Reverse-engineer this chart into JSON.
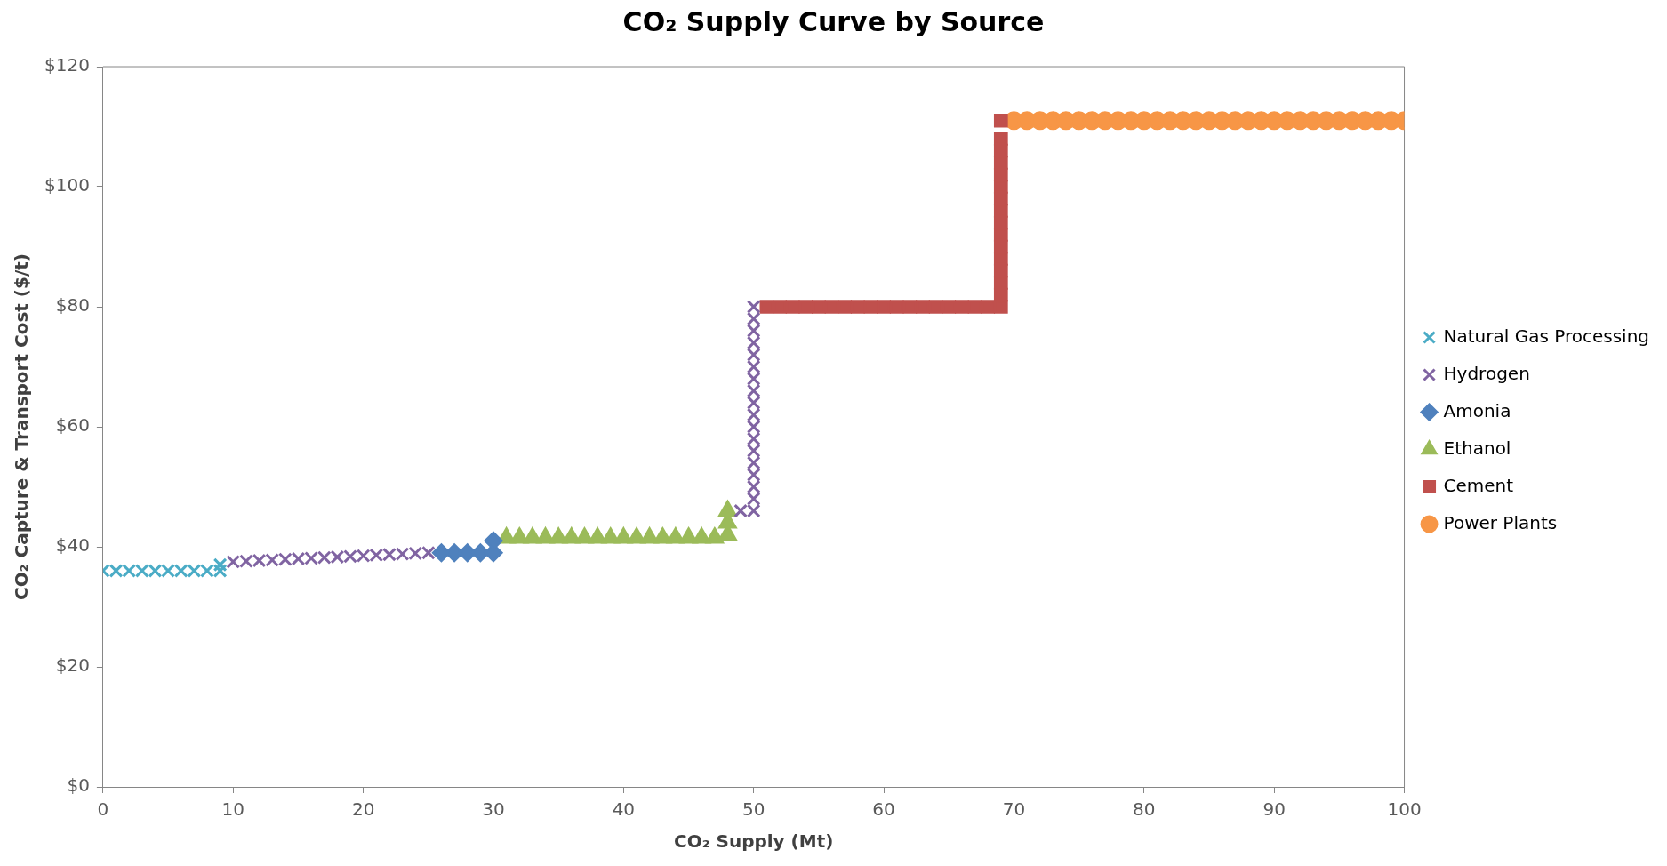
{
  "chart_data": {
    "type": "scatter",
    "title": "CO₂ Supply Curve by Source",
    "xlabel": "CO₂ Supply (Mt)",
    "ylabel": "CO₂ Capture & Transport Cost ($/t)",
    "xlim": [
      0,
      100
    ],
    "xticks": [
      0,
      10,
      20,
      30,
      40,
      50,
      60,
      70,
      80,
      90,
      100
    ],
    "ylim": [
      0,
      120
    ],
    "yticks": [
      {
        "value": 0,
        "label": "$0"
      },
      {
        "value": 20,
        "label": "$20"
      },
      {
        "value": 40,
        "label": "$40"
      },
      {
        "value": 60,
        "label": "$60"
      },
      {
        "value": 80,
        "label": "$80"
      },
      {
        "value": 100,
        "label": "$100"
      },
      {
        "value": 120,
        "label": "$120"
      }
    ],
    "grid": false,
    "legend": "right",
    "series": [
      {
        "name": "Natural Gas Processing",
        "color": "#4bacc6",
        "marker": "cross",
        "x": [
          0,
          1,
          2,
          3,
          4,
          5,
          6,
          7,
          8,
          9,
          9
        ],
        "values": [
          36,
          36,
          36,
          36,
          36,
          36,
          36,
          36,
          36,
          36,
          37
        ]
      },
      {
        "name": "Hydrogen",
        "color": "#8064a2",
        "marker": "cross",
        "x": [
          10,
          11,
          12,
          13,
          14,
          15,
          16,
          17,
          18,
          19,
          20,
          21,
          22,
          23,
          24,
          25,
          49,
          50,
          50,
          50,
          50,
          50,
          50,
          50,
          50,
          50,
          50,
          50,
          50,
          50,
          50,
          50,
          50,
          50,
          50
        ],
        "values": [
          37.5,
          37.6,
          37.7,
          37.8,
          37.9,
          38.0,
          38.1,
          38.2,
          38.3,
          38.4,
          38.5,
          38.6,
          38.7,
          38.8,
          38.9,
          39.0,
          46,
          46,
          48,
          50,
          52,
          54,
          56,
          58,
          60,
          62,
          64,
          66,
          68,
          70,
          72,
          74,
          76,
          78,
          80
        ]
      },
      {
        "name": "Amonia",
        "color": "#4f81bd",
        "marker": "diamond",
        "x": [
          26,
          27,
          28,
          29,
          30,
          30
        ],
        "values": [
          39,
          39,
          39,
          39,
          39,
          41
        ]
      },
      {
        "name": "Ethanol",
        "color": "#9bbb59",
        "marker": "triangle",
        "x": [
          31,
          32,
          33,
          34,
          35,
          36,
          37,
          38,
          39,
          40,
          41,
          42,
          43,
          44,
          45,
          46,
          47,
          48,
          48,
          48
        ],
        "values": [
          41.5,
          41.5,
          41.5,
          41.5,
          41.5,
          41.5,
          41.5,
          41.5,
          41.5,
          41.5,
          41.5,
          41.5,
          41.5,
          41.5,
          41.5,
          41.5,
          41.5,
          42,
          44,
          46
        ]
      },
      {
        "name": "Cement",
        "color": "#c0504d",
        "marker": "square",
        "x": [
          51,
          52,
          53,
          54,
          55,
          56,
          57,
          58,
          59,
          60,
          61,
          62,
          63,
          64,
          65,
          66,
          67,
          68,
          69,
          69,
          69,
          69,
          69,
          69,
          69,
          69,
          69,
          69,
          69,
          69,
          69,
          69,
          69,
          69
        ],
        "values": [
          80,
          80,
          80,
          80,
          80,
          80,
          80,
          80,
          80,
          80,
          80,
          80,
          80,
          80,
          80,
          80,
          80,
          80,
          80,
          82,
          84,
          86,
          88,
          90,
          92,
          94,
          96,
          98,
          100,
          102,
          104,
          106,
          108,
          111
        ]
      },
      {
        "name": "Power Plants",
        "color": "#f79646",
        "marker": "circle",
        "x": [
          70,
          71,
          72,
          73,
          74,
          75,
          76,
          77,
          78,
          79,
          80,
          81,
          82,
          83,
          84,
          85,
          86,
          87,
          88,
          89,
          90,
          91,
          92,
          93,
          94,
          95,
          96,
          97,
          98,
          99,
          100
        ],
        "values": [
          111,
          111,
          111,
          111,
          111,
          111,
          111,
          111,
          111,
          111,
          111,
          111,
          111,
          111,
          111,
          111,
          111,
          111,
          111,
          111,
          111,
          111,
          111,
          111,
          111,
          111,
          111,
          111,
          111,
          111,
          111
        ]
      }
    ]
  }
}
